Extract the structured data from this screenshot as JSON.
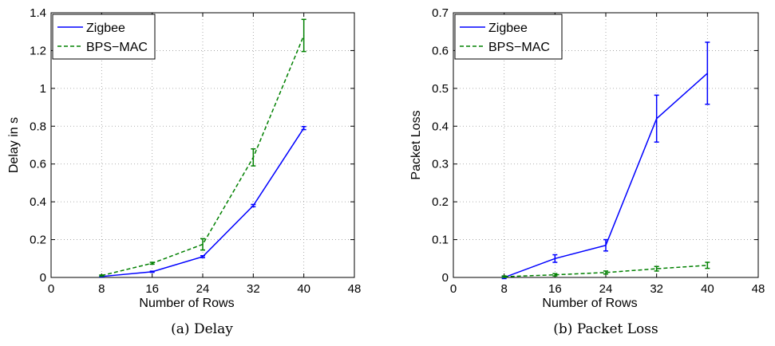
{
  "chart_data": [
    {
      "type": "line",
      "caption": "(a)  Delay",
      "xlabel": "Number of Rows",
      "ylabel": "Delay in s",
      "xlim": [
        0,
        48
      ],
      "ylim": [
        0,
        1.4
      ],
      "xticks": [
        0,
        8,
        16,
        24,
        32,
        40,
        48
      ],
      "yticks": [
        0,
        0.2,
        0.4,
        0.6,
        0.8,
        1,
        1.2,
        1.4
      ],
      "xtick_labels": [
        "0",
        "8",
        "16",
        "24",
        "32",
        "40",
        "48"
      ],
      "ytick_labels": [
        "0",
        "0.2",
        "0.4",
        "0.6",
        "0.8",
        "1",
        "1.2",
        "1.4"
      ],
      "grid": true,
      "legend": "top-left",
      "x": [
        8,
        16,
        24,
        32,
        40
      ],
      "series": [
        {
          "name": "Zigbee",
          "color": "#0000ff",
          "style": "solid",
          "values": [
            0.005,
            0.03,
            0.11,
            0.38,
            0.79
          ],
          "errors": [
            0.002,
            0.003,
            0.005,
            0.006,
            0.008
          ]
        },
        {
          "name": "BPS−MAC",
          "color": "#008000",
          "style": "dashed",
          "values": [
            0.01,
            0.075,
            0.175,
            0.635,
            1.28
          ],
          "errors": [
            0.003,
            0.005,
            0.03,
            0.045,
            0.085
          ]
        }
      ]
    },
    {
      "type": "line",
      "caption": "(b)  Packet Loss",
      "xlabel": "Number of Rows",
      "ylabel": "Packet Loss",
      "xlim": [
        0,
        48
      ],
      "ylim": [
        0,
        0.7
      ],
      "xticks": [
        0,
        8,
        16,
        24,
        32,
        40,
        48
      ],
      "yticks": [
        0,
        0.1,
        0.2,
        0.3,
        0.4,
        0.5,
        0.6,
        0.7
      ],
      "xtick_labels": [
        "0",
        "8",
        "16",
        "24",
        "32",
        "40",
        "48"
      ],
      "ytick_labels": [
        "0",
        "0.1",
        "0.2",
        "0.3",
        "0.4",
        "0.5",
        "0.6",
        "0.7"
      ],
      "grid": true,
      "legend": "top-left",
      "x": [
        8,
        16,
        24,
        32,
        40
      ],
      "series": [
        {
          "name": "Zigbee",
          "color": "#0000ff",
          "style": "solid",
          "values": [
            0.0,
            0.05,
            0.085,
            0.42,
            0.54
          ],
          "errors": [
            0.003,
            0.01,
            0.015,
            0.062,
            0.082
          ]
        },
        {
          "name": "BPS−MAC",
          "color": "#008000",
          "style": "dashed",
          "values": [
            0.002,
            0.007,
            0.013,
            0.023,
            0.032
          ],
          "errors": [
            0.002,
            0.003,
            0.004,
            0.006,
            0.008
          ]
        }
      ]
    }
  ]
}
